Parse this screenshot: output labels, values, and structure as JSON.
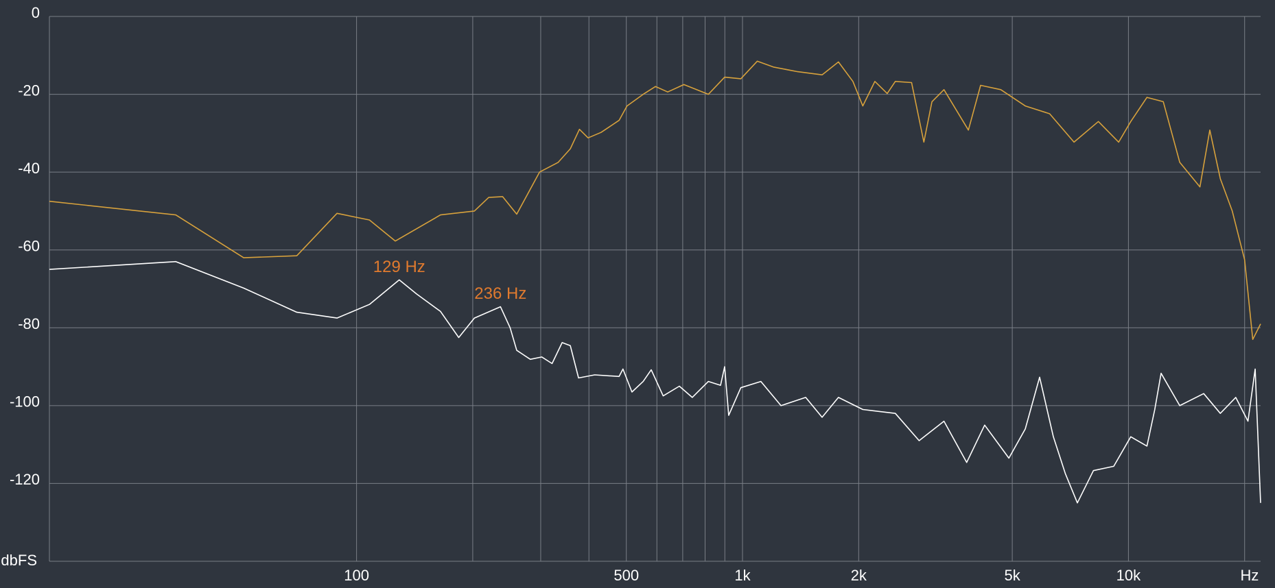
{
  "chart_data": {
    "type": "line",
    "x_label": "Hz",
    "y_label": "dbFS",
    "xscale": "log",
    "xlim": [
      16,
      22000
    ],
    "ylim": [
      -140,
      0
    ],
    "grid": true,
    "xticks": [
      100,
      500,
      {
        "value": 1000,
        "label": "1k"
      },
      {
        "value": 2000,
        "label": "2k"
      },
      {
        "value": 5000,
        "label": "5k"
      },
      {
        "value": 10000,
        "label": "10k"
      }
    ],
    "x_minor_ticks": [
      200,
      300,
      400,
      600,
      700,
      800,
      900,
      20000
    ],
    "yticks": [
      0,
      -20,
      -40,
      -60,
      -80,
      -100,
      -120
    ],
    "series": [
      {
        "color": "#d8a23c",
        "x": [
          16,
          34,
          51,
          70,
          89,
          108,
          126,
          165,
          202,
          220,
          239,
          260,
          298,
          333,
          358,
          378,
          398,
          430,
          479,
          502,
          553,
          595,
          640,
          705,
          816,
          899,
          990,
          1092,
          1202,
          1390,
          1608,
          1772,
          1932,
          2050,
          2203,
          2371,
          2489,
          2742,
          2951,
          3097,
          3327,
          3849,
          4140,
          4670,
          5404,
          6250,
          7227,
          8359,
          9433,
          10140,
          11170,
          12310,
          13580,
          15320,
          16250,
          17300,
          18580,
          20000,
          21000,
          22000
        ],
        "values": [
          -47.5,
          -51,
          -62,
          -61.5,
          -50.6,
          -52.3,
          -57.7,
          -51,
          -50,
          -46.5,
          -46.3,
          -50.8,
          -40,
          -37.5,
          -34,
          -29,
          -31.2,
          -29.8,
          -26.7,
          -23,
          -20,
          -18,
          -19.4,
          -17.5,
          -20,
          -15.6,
          -16,
          -11.5,
          -13,
          -14.2,
          -15,
          -11.7,
          -16.7,
          -23,
          -16.7,
          -19.8,
          -16.7,
          -17,
          -32.3,
          -21.9,
          -18.8,
          -29.2,
          -17.7,
          -18.8,
          -23,
          -25,
          -32.3,
          -27,
          -32.3,
          -27,
          -20.8,
          -21.9,
          -37.5,
          -43.8,
          -29.2,
          -41.7,
          -50,
          -62.5,
          -83,
          -79
        ]
      },
      {
        "color": "#ffffff",
        "x": [
          16,
          34,
          51,
          70,
          89,
          108,
          129,
          143,
          165,
          184,
          202,
          236,
          250,
          260,
          282,
          302,
          321,
          341,
          358,
          376,
          414,
          479,
          490,
          517,
          553,
          580,
          623,
          686,
          741,
          816,
          877,
          899,
          921,
          990,
          1116,
          1258,
          1458,
          1608,
          1772,
          2050,
          2489,
          2868,
          3327,
          3810,
          4241,
          4900,
          5404,
          5887,
          6388,
          6865,
          7373,
          8115,
          9160,
          10140,
          11170,
          11700,
          12150,
          13580,
          15670,
          17300,
          18970,
          20400,
          21300,
          22000
        ],
        "values": [
          -65,
          -63,
          -69.8,
          -76,
          -77.5,
          -74,
          -67.7,
          -71.3,
          -75.8,
          -82.5,
          -77.5,
          -74.6,
          -80,
          -85.8,
          -88.1,
          -87.5,
          -89.2,
          -83.8,
          -84.6,
          -92.9,
          -92.1,
          -92.5,
          -90.6,
          -96.5,
          -93.8,
          -90.8,
          -97.5,
          -95,
          -97.9,
          -93.8,
          -94.8,
          -90,
          -102.5,
          -95.4,
          -93.8,
          -100,
          -97.9,
          -103,
          -97.9,
          -101,
          -102,
          -109,
          -104,
          -114.6,
          -105,
          -113.5,
          -106,
          -92.7,
          -108,
          -117.5,
          -125,
          -116.7,
          -115.6,
          -108,
          -110.4,
          -101,
          -91.7,
          -100,
          -96.9,
          -102,
          -97.9,
          -104,
          -90.6,
          -125
        ]
      }
    ],
    "annotations": [
      {
        "text": "129 Hz",
        "x": 129,
        "y": -67.7,
        "color": "#e07a2e"
      },
      {
        "text": "236 Hz",
        "x": 236,
        "y": -74.6,
        "color": "#e07a2e"
      }
    ]
  }
}
